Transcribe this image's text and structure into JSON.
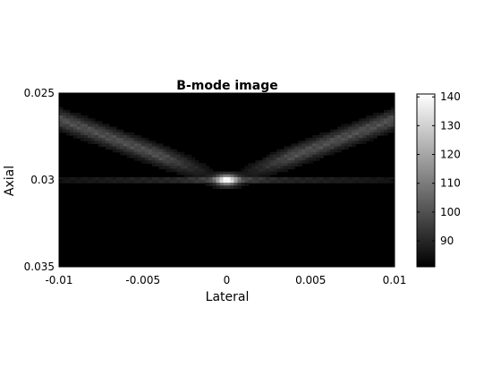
{
  "chart_data": {
    "type": "heatmap",
    "title": "B-mode image",
    "xlabel": "Lateral",
    "ylabel": "Axial",
    "xlim": [
      -0.01,
      0.01
    ],
    "ylim": [
      0.025,
      0.035
    ],
    "y_reversed": true,
    "x_ticks": [
      {
        "value": -0.01,
        "label": "-0.01"
      },
      {
        "value": -0.005,
        "label": "-0.005"
      },
      {
        "value": 0,
        "label": "0"
      },
      {
        "value": 0.005,
        "label": "0.005"
      },
      {
        "value": 0.01,
        "label": "0.01"
      }
    ],
    "y_ticks": [
      {
        "value": 0.025,
        "label": "0.025"
      },
      {
        "value": 0.03,
        "label": "0.03"
      },
      {
        "value": 0.035,
        "label": "0.035"
      }
    ],
    "colormap": "gray",
    "colorbar": {
      "range": [
        81,
        141
      ],
      "ticks": [
        {
          "value": 90,
          "label": "90"
        },
        {
          "value": 100,
          "label": "100"
        },
        {
          "value": 110,
          "label": "110"
        },
        {
          "value": 120,
          "label": "120"
        },
        {
          "value": 130,
          "label": "130"
        },
        {
          "value": 140,
          "label": "140"
        }
      ]
    },
    "peak": {
      "x": 0,
      "y": 0.03,
      "value": 141
    },
    "background_value": 81
  }
}
